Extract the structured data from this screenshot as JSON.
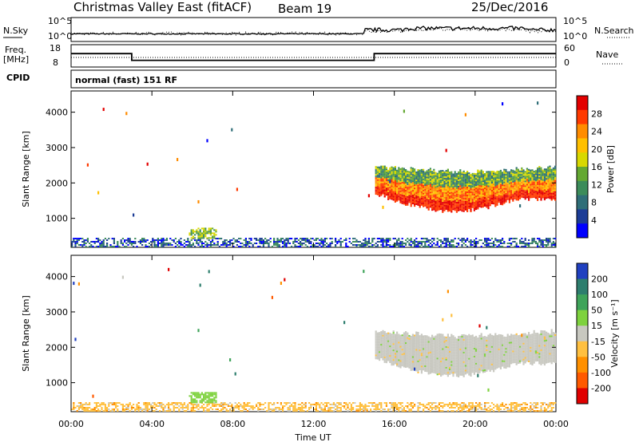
{
  "header": {
    "station": "Christmas Valley East (fitACF)",
    "beam": "Beam 19",
    "date": "25/Dec/2016"
  },
  "panels": {
    "nsky_label": "N.Sky",
    "nsearch_label": "N.Search",
    "freq_label_line1": "Freq.",
    "freq_label_line2": "[MHz]",
    "nave_label": "Nave",
    "cpid_label": "CPID",
    "cpid_value": "normal (fast) 151 RF",
    "noise_left_ticks": [
      "10^5",
      "10^0"
    ],
    "noise_right_ticks": [
      "10^5",
      "10^0"
    ],
    "freq_left_ticks": [
      "18",
      "8"
    ],
    "freq_right_ticks": [
      "60",
      "0"
    ]
  },
  "power_colorbar": {
    "title": "Power [dB]",
    "ticks": [
      "28",
      "24",
      "20",
      "16",
      "12",
      "8",
      "4"
    ],
    "colors": [
      "#e30000",
      "#ff3a00",
      "#ff8c00",
      "#ffc000",
      "#d8d800",
      "#64a832",
      "#3c8c5a",
      "#2f6e78",
      "#1c3c96",
      "#0000ff"
    ]
  },
  "velocity_colorbar": {
    "title": "Velocity [m s⁻¹]",
    "ticks": [
      "200",
      "100",
      "50",
      "15",
      "-15",
      "-50",
      "-100",
      "-200"
    ],
    "colors": [
      "#2040c0",
      "#2e7e6e",
      "#3fa45a",
      "#7ed23e",
      "#c8c8c0",
      "#ffc040",
      "#ff9000",
      "#ff5a00",
      "#e00000"
    ]
  },
  "chart_data": [
    {
      "type": "heatmap",
      "name": "power",
      "ylabel": "Slant Range [km]",
      "xlabel": "Time UT",
      "x_ticks": [
        "00:00",
        "04:00",
        "08:00",
        "12:00",
        "16:00",
        "20:00",
        "00:00"
      ],
      "y_ticks": [
        1000,
        2000,
        3000,
        4000
      ],
      "ylim": [
        180,
        4600
      ],
      "xlim_hours": [
        0,
        24
      ],
      "colorbar": "Power [dB]",
      "regions": [
        {
          "desc": "night echo band",
          "t": [
            15.0,
            24.0
          ],
          "range_km": [
            1200,
            2600
          ],
          "value_db": 22
        },
        {
          "desc": "daytime near-range",
          "t": [
            0.0,
            24.0
          ],
          "range_km": [
            180,
            400
          ],
          "value_db": 8
        },
        {
          "desc": "morning patch",
          "t": [
            5.8,
            7.2
          ],
          "range_km": [
            400,
            700
          ],
          "value_db": 14
        }
      ]
    },
    {
      "type": "heatmap",
      "name": "velocity",
      "ylabel": "Slant Range [km]",
      "xlabel": "Time UT",
      "x_ticks": [
        "00:00",
        "04:00",
        "08:00",
        "12:00",
        "16:00",
        "20:00",
        "00:00"
      ],
      "y_ticks": [
        1000,
        2000,
        3000,
        4000
      ],
      "ylim": [
        180,
        4600
      ],
      "xlim_hours": [
        0,
        24
      ],
      "colorbar": "Velocity [m s-1]",
      "regions": [
        {
          "desc": "night echo band",
          "t": [
            15.0,
            24.0
          ],
          "range_km": [
            1200,
            2600
          ],
          "value_ms": 0
        },
        {
          "desc": "near-range",
          "t": [
            0.0,
            24.0
          ],
          "range_km": [
            180,
            400
          ],
          "value_ms": -30
        },
        {
          "desc": "morning patch",
          "t": [
            5.8,
            7.2
          ],
          "range_km": [
            400,
            700
          ],
          "value_ms": 40
        }
      ]
    },
    {
      "type": "line",
      "name": "frequency",
      "units": "MHz",
      "ylim": [
        8,
        18
      ],
      "segments": [
        {
          "t": [
            0,
            3
          ],
          "value": 14
        },
        {
          "t": [
            3,
            15
          ],
          "value": 11
        },
        {
          "t": [
            15,
            24
          ],
          "value": 14
        }
      ]
    }
  ]
}
